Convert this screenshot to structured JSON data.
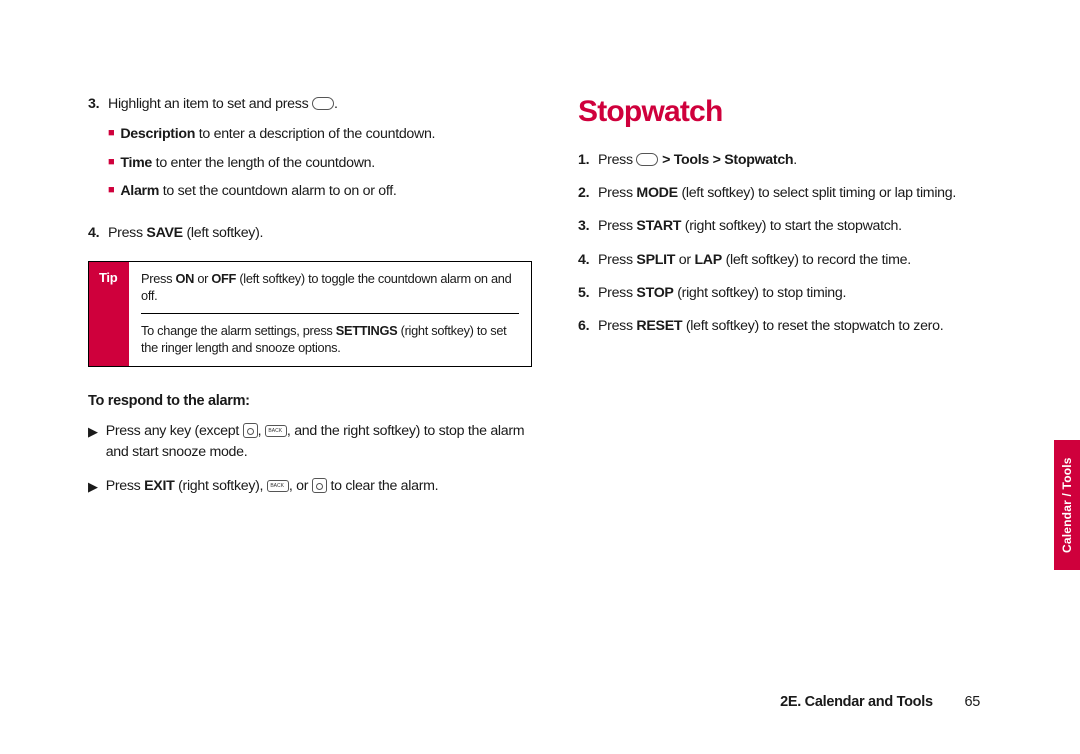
{
  "brand_color": "#cf003c",
  "text_color": "#1a1a1a",
  "background_color": "#ffffff",
  "fonts": {
    "body_size_pt": 11,
    "heading_size_pt": 22
  },
  "left": {
    "step3": {
      "num": "3.",
      "lead": "Highlight an item to set and press ",
      "trail": ".",
      "bullets": [
        {
          "bold": "Description",
          "rest": " to enter a description of the countdown."
        },
        {
          "bold": "Time",
          "rest": " to enter the length of the countdown."
        },
        {
          "bold": "Alarm",
          "rest": " to set the countdown alarm to on or off."
        }
      ]
    },
    "step4": {
      "num": "4.",
      "pre": "Press ",
      "bold": "SAVE",
      "post": " (left softkey)."
    },
    "tip": {
      "label": "Tip",
      "p1_pre": "Press ",
      "p1_b1": "ON",
      "p1_mid": " or ",
      "p1_b2": "OFF",
      "p1_post": " (left softkey) to toggle the countdown alarm on and off.",
      "p2_pre": "To change the alarm settings, press ",
      "p2_b": "SETTINGS",
      "p2_post": " (right softkey) to set the ringer length and snooze options."
    },
    "respond_heading": "To respond to the alarm:",
    "respond": [
      {
        "pre": "Press any key (except ",
        "mid": ", ",
        "mid2": ", and the right softkey) to stop the alarm and start snooze mode."
      },
      {
        "pre": "Press ",
        "b": "EXIT",
        "post1": " (right softkey), ",
        "post2": ", or ",
        "post3": " to clear the alarm."
      }
    ]
  },
  "right": {
    "heading": "Stopwatch",
    "steps": {
      "s1": {
        "num": "1.",
        "pre": "Press ",
        "mid": " > ",
        "b": "Tools > Stopwatch",
        "post": "."
      },
      "s2": {
        "num": "2.",
        "pre": "Press ",
        "b": "MODE",
        "post": " (left softkey) to select split timing or lap timing."
      },
      "s3": {
        "num": "3.",
        "pre": "Press ",
        "b": "START",
        "post": " (right softkey) to start the stopwatch."
      },
      "s4": {
        "num": "4.",
        "pre": "Press ",
        "b1": "SPLIT",
        "mid": " or ",
        "b2": "LAP",
        "post": " (left softkey) to record the time."
      },
      "s5": {
        "num": "5.",
        "pre": "Press ",
        "b": "STOP",
        "post": " (right softkey) to stop timing."
      },
      "s6": {
        "num": "6.",
        "pre": "Press ",
        "b": "RESET",
        "post": " (left softkey) to reset the stopwatch to zero."
      }
    }
  },
  "sidetab": "Calendar / Tools",
  "footer": {
    "section": "2E. Calendar and Tools",
    "page": "65"
  }
}
